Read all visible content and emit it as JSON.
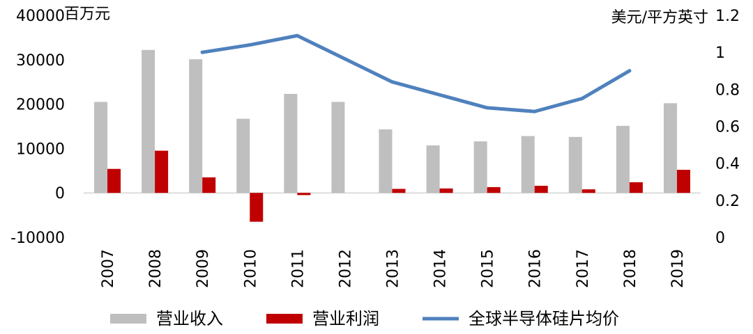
{
  "chart_data": {
    "type": "bar",
    "categories": [
      "2007",
      "2008",
      "2009",
      "2010",
      "2011",
      "2012",
      "2013",
      "2014",
      "2015",
      "2016",
      "2017",
      "2018",
      "2019"
    ],
    "series": [
      {
        "name": "营业收入",
        "type": "bar",
        "axis": "left",
        "color": "#BFBFBF",
        "values": [
          20500,
          32200,
          30100,
          16700,
          22300,
          20500,
          14300,
          10700,
          11600,
          12800,
          12600,
          15100,
          20200
        ]
      },
      {
        "name": "营业利润",
        "type": "bar",
        "axis": "left",
        "color": "#C00000",
        "values": [
          5400,
          9500,
          3500,
          -6500,
          -500,
          0,
          900,
          1000,
          1300,
          1600,
          800,
          2400,
          5200
        ]
      },
      {
        "name": "全球半导体硅片均价",
        "type": "line",
        "axis": "right",
        "color": "#4F81BD",
        "values": [
          null,
          null,
          1.0,
          1.04,
          1.09,
          null,
          0.84,
          null,
          0.7,
          0.68,
          0.75,
          0.9,
          null
        ]
      }
    ],
    "y_left": {
      "unit": "百万元",
      "ylim": [
        -10000,
        40000
      ],
      "ticks": [
        "-10000",
        "0",
        "10000",
        "20000",
        "30000",
        "40000"
      ]
    },
    "y_right": {
      "unit": "美元/平方英寸",
      "ylim": [
        0,
        1.2
      ],
      "ticks": [
        "0",
        "0.2",
        "0.4",
        "0.6",
        "0.8",
        "1",
        "1.2"
      ]
    },
    "grid": false,
    "legend": {
      "position": "bottom"
    }
  }
}
